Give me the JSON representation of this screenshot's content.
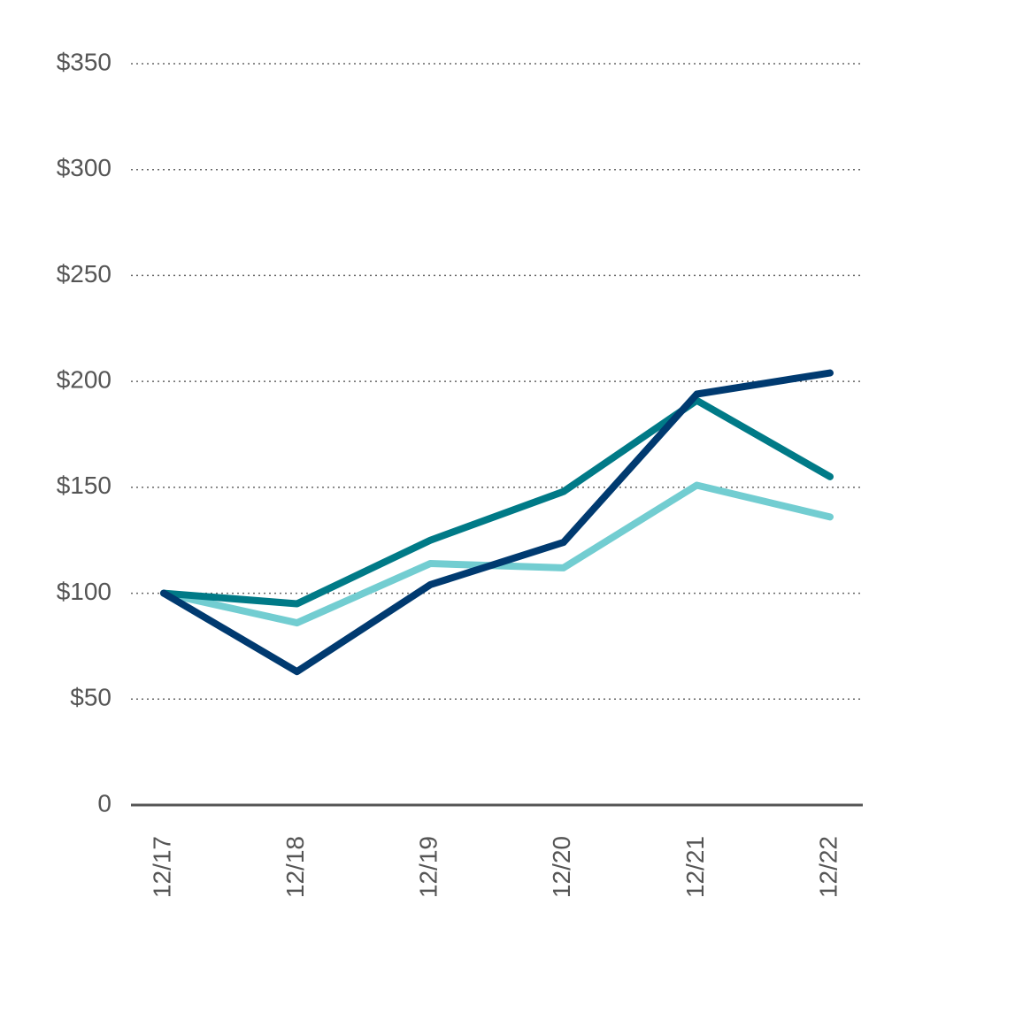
{
  "chart_data": {
    "type": "line",
    "categories": [
      "12/17",
      "12/18",
      "12/19",
      "12/20",
      "12/21",
      "12/22"
    ],
    "series": [
      {
        "color": "#72cdd1",
        "values": [
          100,
          86,
          114,
          112,
          151,
          136
        ]
      },
      {
        "color": "#007a87",
        "values": [
          100,
          95,
          125,
          148,
          191,
          155
        ]
      },
      {
        "color": "#003a70",
        "values": [
          100,
          63,
          104,
          124,
          194,
          204
        ]
      }
    ],
    "ylim": [
      0,
      350
    ],
    "yticks": [
      0,
      {
        "value": 50,
        "label": "$50"
      },
      {
        "value": 100,
        "label": "$100"
      },
      {
        "value": 150,
        "label": "$150"
      },
      {
        "value": 200,
        "label": "$200"
      },
      {
        "value": 250,
        "label": "$250"
      },
      {
        "value": 300,
        "label": "$300"
      },
      {
        "value": 350,
        "label": "$350"
      }
    ],
    "grid": true
  }
}
